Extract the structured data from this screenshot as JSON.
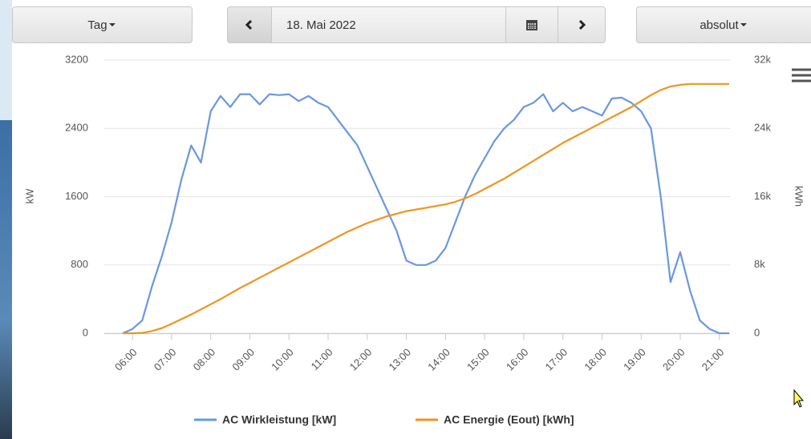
{
  "controls": {
    "period": "Tag",
    "date": "18. Mai 2022",
    "mode": "absolut"
  },
  "chart_data": {
    "type": "line",
    "y_label": "kW",
    "y2_label": "kWh",
    "x": [
      5.75,
      6,
      6.25,
      6.5,
      6.75,
      7,
      7.25,
      7.5,
      7.75,
      8,
      8.25,
      8.5,
      8.75,
      9,
      9.25,
      9.5,
      9.75,
      10,
      10.25,
      10.5,
      10.75,
      11,
      11.25,
      11.5,
      11.75,
      12,
      12.25,
      12.5,
      12.75,
      13,
      13.25,
      13.5,
      13.75,
      14,
      14.25,
      14.5,
      14.75,
      15,
      15.25,
      15.5,
      15.75,
      16,
      16.25,
      16.5,
      16.75,
      17,
      17.25,
      17.5,
      17.75,
      18,
      18.25,
      18.5,
      18.75,
      19,
      19.25,
      19.5,
      19.75,
      20,
      20.25,
      20.5,
      20.75,
      21,
      21.25
    ],
    "series": [
      {
        "name": "AC Wirkleistung [kW]",
        "color": "#6a97e0",
        "axis": "y",
        "values": [
          0,
          50,
          150,
          550,
          900,
          1300,
          1800,
          2200,
          2000,
          2600,
          2780,
          2650,
          2800,
          2800,
          2680,
          2800,
          2790,
          2800,
          2720,
          2780,
          2700,
          2650,
          2500,
          2350,
          2200,
          1950,
          1700,
          1450,
          1200,
          850,
          800,
          800,
          850,
          1000,
          1300,
          1600,
          1850,
          2050,
          2250,
          2400,
          2500,
          2650,
          2700,
          2800,
          2600,
          2700,
          2600,
          2650,
          2600,
          2550,
          2750,
          2760,
          2700,
          2600,
          2400,
          1600,
          600,
          950,
          500,
          150,
          50,
          0,
          0
        ]
      },
      {
        "name": "AC Energie (Eout) [kWh]",
        "color": "#f0941e",
        "axis": "y2",
        "values": [
          0,
          0,
          50,
          250,
          600,
          1100,
          1650,
          2200,
          2800,
          3400,
          4000,
          4650,
          5300,
          5900,
          6500,
          7100,
          7700,
          8300,
          8900,
          9500,
          10100,
          10700,
          11300,
          11900,
          12400,
          12900,
          13300,
          13700,
          14000,
          14300,
          14500,
          14700,
          14900,
          15100,
          15400,
          15800,
          16300,
          16900,
          17500,
          18100,
          18800,
          19500,
          20200,
          20900,
          21600,
          22300,
          22900,
          23500,
          24100,
          24700,
          25300,
          25900,
          26500,
          27200,
          27900,
          28500,
          28900,
          29100,
          29200,
          29200,
          29200,
          29200,
          29200
        ]
      }
    ],
    "xlim": [
      5.28,
      21.27
    ],
    "xticks": [
      {
        "value": 6,
        "label": "06:00"
      },
      {
        "value": 7,
        "label": "07:00"
      },
      {
        "value": 8,
        "label": "08:00"
      },
      {
        "value": 9,
        "label": "09:00"
      },
      {
        "value": 10,
        "label": "10:00"
      },
      {
        "value": 11,
        "label": "11:00"
      },
      {
        "value": 12,
        "label": "12:00"
      },
      {
        "value": 13,
        "label": "13:00"
      },
      {
        "value": 14,
        "label": "14:00"
      },
      {
        "value": 15,
        "label": "15:00"
      },
      {
        "value": 16,
        "label": "16:00"
      },
      {
        "value": 17,
        "label": "17:00"
      },
      {
        "value": 18,
        "label": "18:00"
      },
      {
        "value": 19,
        "label": "19:00"
      },
      {
        "value": 20,
        "label": "20:00"
      },
      {
        "value": 21,
        "label": "21:00"
      }
    ],
    "ylim": [
      0,
      3200
    ],
    "yticks": [
      0,
      800,
      1600,
      2400,
      3200
    ],
    "y2lim": [
      0,
      32000
    ],
    "y2ticks": [
      0,
      {
        "value": 8000,
        "label": "8k"
      },
      {
        "value": 16000,
        "label": "16k"
      },
      {
        "value": 24000,
        "label": "24k"
      },
      {
        "value": 32000,
        "label": "32k"
      }
    ],
    "grid": true
  }
}
